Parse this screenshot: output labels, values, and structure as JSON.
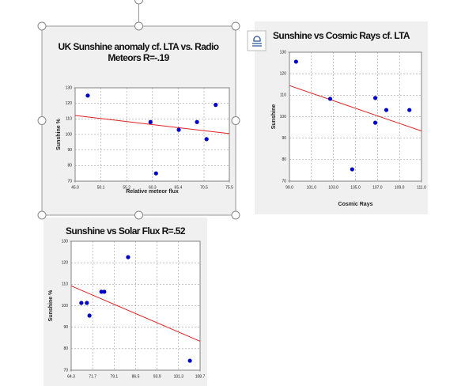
{
  "chart_data": [
    {
      "type": "scatter",
      "title": "UK Sunshine anomaly cf. LTA vs. Radio Meteors   R=-.19",
      "x_label": "Relative meteor flux",
      "y_label": "Sunshine %",
      "x": [
        47.5,
        59.9,
        61.0,
        65.5,
        69.1,
        71.0,
        72.8
      ],
      "values": [
        125,
        108,
        75,
        103,
        108,
        97,
        119
      ],
      "color": "#0000cc",
      "trendline": true,
      "trendline_color": "#e02020",
      "xlim": [
        45.0,
        75.5
      ],
      "xticks": [
        {
          "value": 45.0,
          "label": "45.0"
        },
        50.1,
        55.2,
        60.3,
        65.4,
        70.5,
        75.5
      ],
      "ylim": [
        70,
        130
      ],
      "yticks": [
        70,
        80,
        90,
        100,
        110,
        120,
        130
      ],
      "grid": true
    },
    {
      "type": "scatter",
      "title": "Sunshine vs Cosmic Rays cf. LTA",
      "x_label": "Cosmic Rays",
      "y_label": "Sunshine",
      "x": [
        99.6,
        102.7,
        104.7,
        106.8,
        106.8,
        107.8,
        109.9
      ],
      "values": [
        125.6,
        108.3,
        75.5,
        108.7,
        97.2,
        103.1,
        103.1
      ],
      "color": "#0000cc",
      "trendline": true,
      "trendline_color": "#e02020",
      "xlim": [
        99.0,
        111.0
      ],
      "xticks": [
        {
          "value": 99.0,
          "label": "99.0"
        },
        {
          "value": 101.0,
          "label": "101.0"
        },
        {
          "value": 103.0,
          "label": "103.0"
        },
        {
          "value": 105.0,
          "label": "105.0"
        },
        {
          "value": 107.0,
          "label": "107.0"
        },
        {
          "value": 109.0,
          "label": "109.0"
        },
        {
          "value": 111.0,
          "label": "111.0"
        }
      ],
      "ylim": [
        70,
        130
      ],
      "yticks": [
        70,
        80,
        90,
        100,
        110,
        120,
        130
      ],
      "grid": true
    },
    {
      "type": "scatter",
      "title": "Sunshine vs Solar Flux R=.52",
      "y_label": "Sunshine %",
      "x": [
        67.8,
        69.7,
        70.6,
        74.7,
        75.7,
        83.9,
        105.2
      ],
      "values": [
        101.3,
        101.3,
        95.4,
        106.5,
        106.5,
        122.6,
        74.4
      ],
      "color": "#0000cc",
      "trendline": true,
      "trendline_color": "#e02020",
      "xlim": [
        64.3,
        108.7
      ],
      "xticks": [
        64.3,
        71.7,
        79.1,
        86.5,
        93.9,
        101.3,
        108.7
      ],
      "ylim": [
        70,
        130
      ],
      "yticks": [
        70,
        80,
        90,
        100,
        110,
        120,
        130
      ],
      "grid": true
    }
  ]
}
